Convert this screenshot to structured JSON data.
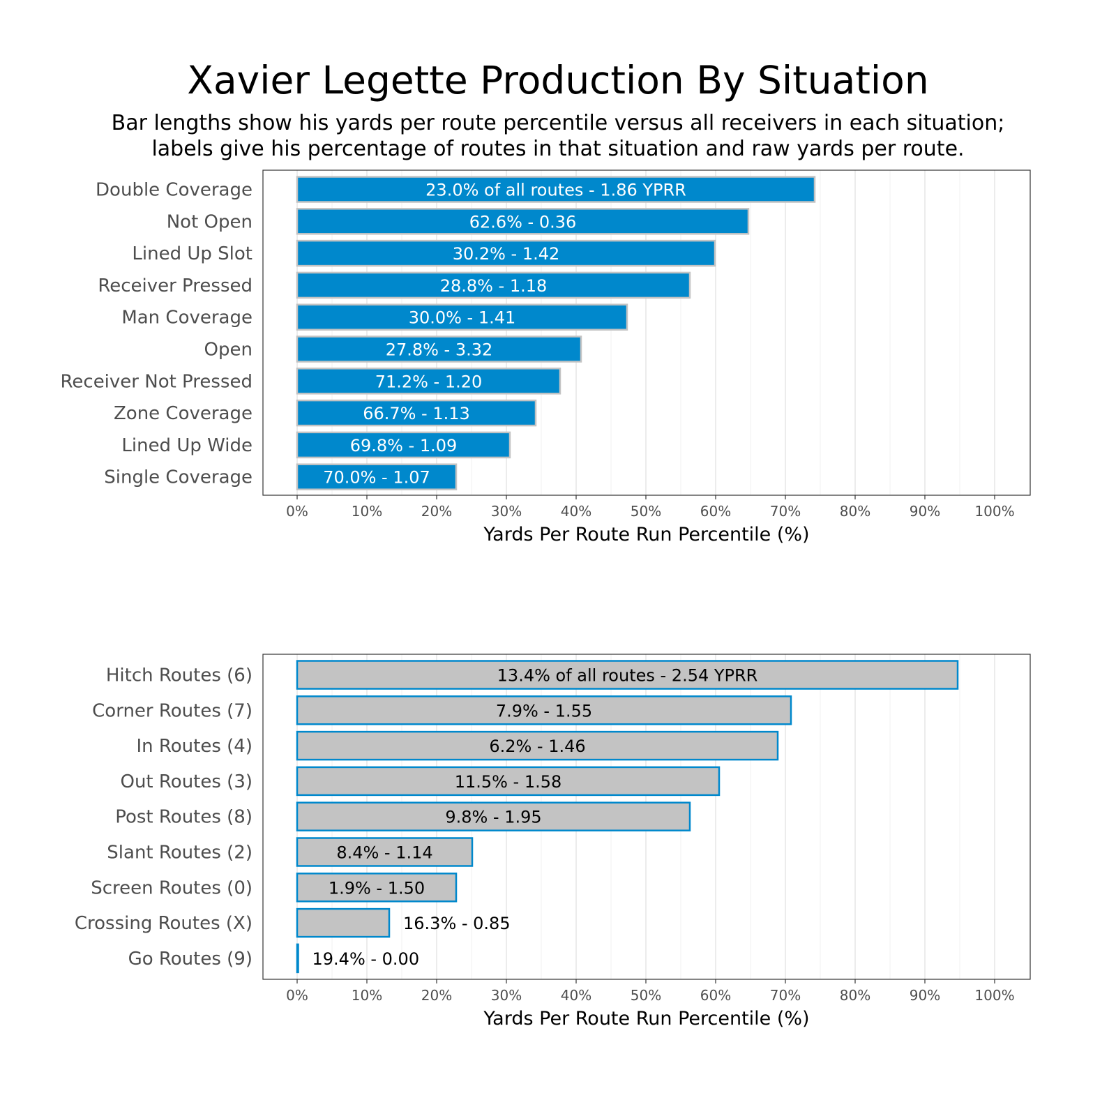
{
  "title": "Xavier Legette Production By Situation",
  "subtitle": [
    "Bar lengths show his yards per route percentile versus all receivers in each situation;",
    "labels give his percentage of routes in that situation and raw yards per route."
  ],
  "colors": {
    "blue": "#0088cc",
    "gray": "#c3c3c3",
    "white": "#ffffff",
    "black": "#000000"
  },
  "chart_data": [
    {
      "type": "bar",
      "orientation": "horizontal",
      "xlabel": "Yards Per Route Run Percentile (%)",
      "xlim": [
        0,
        100
      ],
      "xticks": [
        "0%",
        "10%",
        "20%",
        "30%",
        "40%",
        "50%",
        "60%",
        "70%",
        "80%",
        "90%",
        "100%"
      ],
      "categories": [
        "Double Coverage",
        "Not Open",
        "Lined Up Slot",
        "Receiver Pressed",
        "Man Coverage",
        "Open",
        "Receiver Not Pressed",
        "Zone Coverage",
        "Lined Up Wide",
        "Single Coverage"
      ],
      "values": [
        74.2,
        64.7,
        59.9,
        56.3,
        47.3,
        40.7,
        37.7,
        34.2,
        30.5,
        22.8
      ],
      "labels": [
        "23.0% of all routes - 1.86 YPRR",
        "62.6% - 0.36",
        "30.2% - 1.42",
        "28.8% - 1.18",
        "30.0% - 1.41",
        "27.8% - 3.32",
        "71.2% - 1.20",
        "66.7% - 1.13",
        "69.8% - 1.09",
        "70.0% - 1.07"
      ],
      "bar_fill": "#0088cc",
      "bar_outline": "#c3c3c3",
      "label_color": "#ffffff"
    },
    {
      "type": "bar",
      "orientation": "horizontal",
      "xlabel": "Yards Per Route Run Percentile (%)",
      "xlim": [
        0,
        100
      ],
      "xticks": [
        "0%",
        "10%",
        "20%",
        "30%",
        "40%",
        "50%",
        "60%",
        "70%",
        "80%",
        "90%",
        "100%"
      ],
      "categories": [
        "Hitch Routes (6)",
        "Corner Routes (7)",
        "In Routes (4)",
        "Out Routes (3)",
        "Post Routes (8)",
        "Slant Routes (2)",
        "Screen Routes (0)",
        "Crossing Routes (X)",
        "Go Routes (9)"
      ],
      "values": [
        94.7,
        70.8,
        68.9,
        60.5,
        56.3,
        25.1,
        22.8,
        13.2,
        0.0
      ],
      "labels": [
        "13.4% of all routes - 2.54 YPRR",
        "7.9% - 1.55",
        "6.2% - 1.46",
        "11.5% - 1.58",
        "9.8% - 1.95",
        "8.4% - 1.14",
        "1.9% - 1.50",
        "16.3% - 0.85",
        "19.4% - 0.00"
      ],
      "bar_fill": "#c3c3c3",
      "bar_outline": "#0088cc",
      "label_color": "#000000"
    }
  ]
}
